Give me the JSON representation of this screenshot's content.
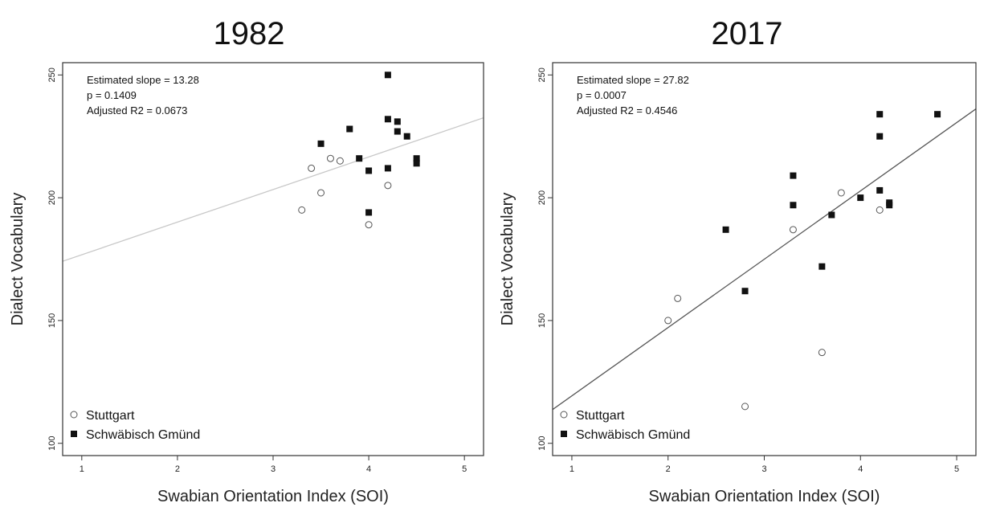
{
  "chart_data": [
    {
      "type": "scatter",
      "title": "1982",
      "xlabel": "Swabian Orientation Index (SOI)",
      "ylabel": "Dialect Vocabulary",
      "xlim": [
        0.8,
        5.2
      ],
      "ylim": [
        95,
        255
      ],
      "xticks": [
        1,
        2,
        3,
        4,
        5
      ],
      "yticks": [
        100,
        150,
        200,
        250
      ],
      "annotation": [
        "Estimated slope =  13.28",
        "p = 0.1409",
        "Adjusted R2 = 0.0673"
      ],
      "legend": {
        "position": "bottom-left",
        "entries": [
          "Stuttgart",
          "Schwäbisch Gmünd"
        ]
      },
      "regression": {
        "intercept": 163.5,
        "slope": 13.28,
        "color": "#c8c8c8"
      },
      "series": [
        {
          "name": "Stuttgart",
          "marker": "open-circle",
          "x": [
            3.3,
            3.4,
            3.5,
            3.6,
            3.7,
            4.0,
            4.2
          ],
          "y": [
            195,
            212,
            202,
            216,
            215,
            189,
            205
          ]
        },
        {
          "name": "Schwäbisch Gmünd",
          "marker": "filled-square",
          "x": [
            3.5,
            3.8,
            3.9,
            4.0,
            4.0,
            4.2,
            4.2,
            4.2,
            4.3,
            4.3,
            4.4,
            4.5,
            4.5
          ],
          "y": [
            222,
            228,
            216,
            211,
            194,
            250,
            232,
            212,
            231,
            227,
            225,
            216,
            214
          ]
        }
      ]
    },
    {
      "type": "scatter",
      "title": "2017",
      "xlabel": "Swabian Orientation Index (SOI)",
      "ylabel": "Dialect Vocabulary",
      "xlim": [
        0.8,
        5.2
      ],
      "ylim": [
        95,
        255
      ],
      "xticks": [
        1,
        2,
        3,
        4,
        5
      ],
      "yticks": [
        100,
        150,
        200,
        250
      ],
      "annotation": [
        "Estimated slope =  27.82",
        "p = 0.0007",
        "Adjusted R2 = 0.4546"
      ],
      "legend": {
        "position": "bottom-left",
        "entries": [
          "Stuttgart",
          "Schwäbisch Gmünd"
        ]
      },
      "regression": {
        "intercept": 91.5,
        "slope": 27.82,
        "color": "#555555"
      },
      "series": [
        {
          "name": "Stuttgart",
          "marker": "open-circle",
          "x": [
            2.0,
            2.1,
            2.8,
            3.3,
            3.6,
            3.8,
            4.2
          ],
          "y": [
            150,
            159,
            115,
            187,
            137,
            202,
            195
          ]
        },
        {
          "name": "Schwäbisch Gmünd",
          "marker": "filled-square",
          "x": [
            2.6,
            2.8,
            3.3,
            3.3,
            3.6,
            3.7,
            4.0,
            4.2,
            4.2,
            4.2,
            4.3,
            4.3,
            4.8
          ],
          "y": [
            187,
            162,
            209,
            197,
            172,
            193,
            200,
            234,
            225,
            203,
            198,
            197,
            234
          ]
        }
      ]
    }
  ]
}
